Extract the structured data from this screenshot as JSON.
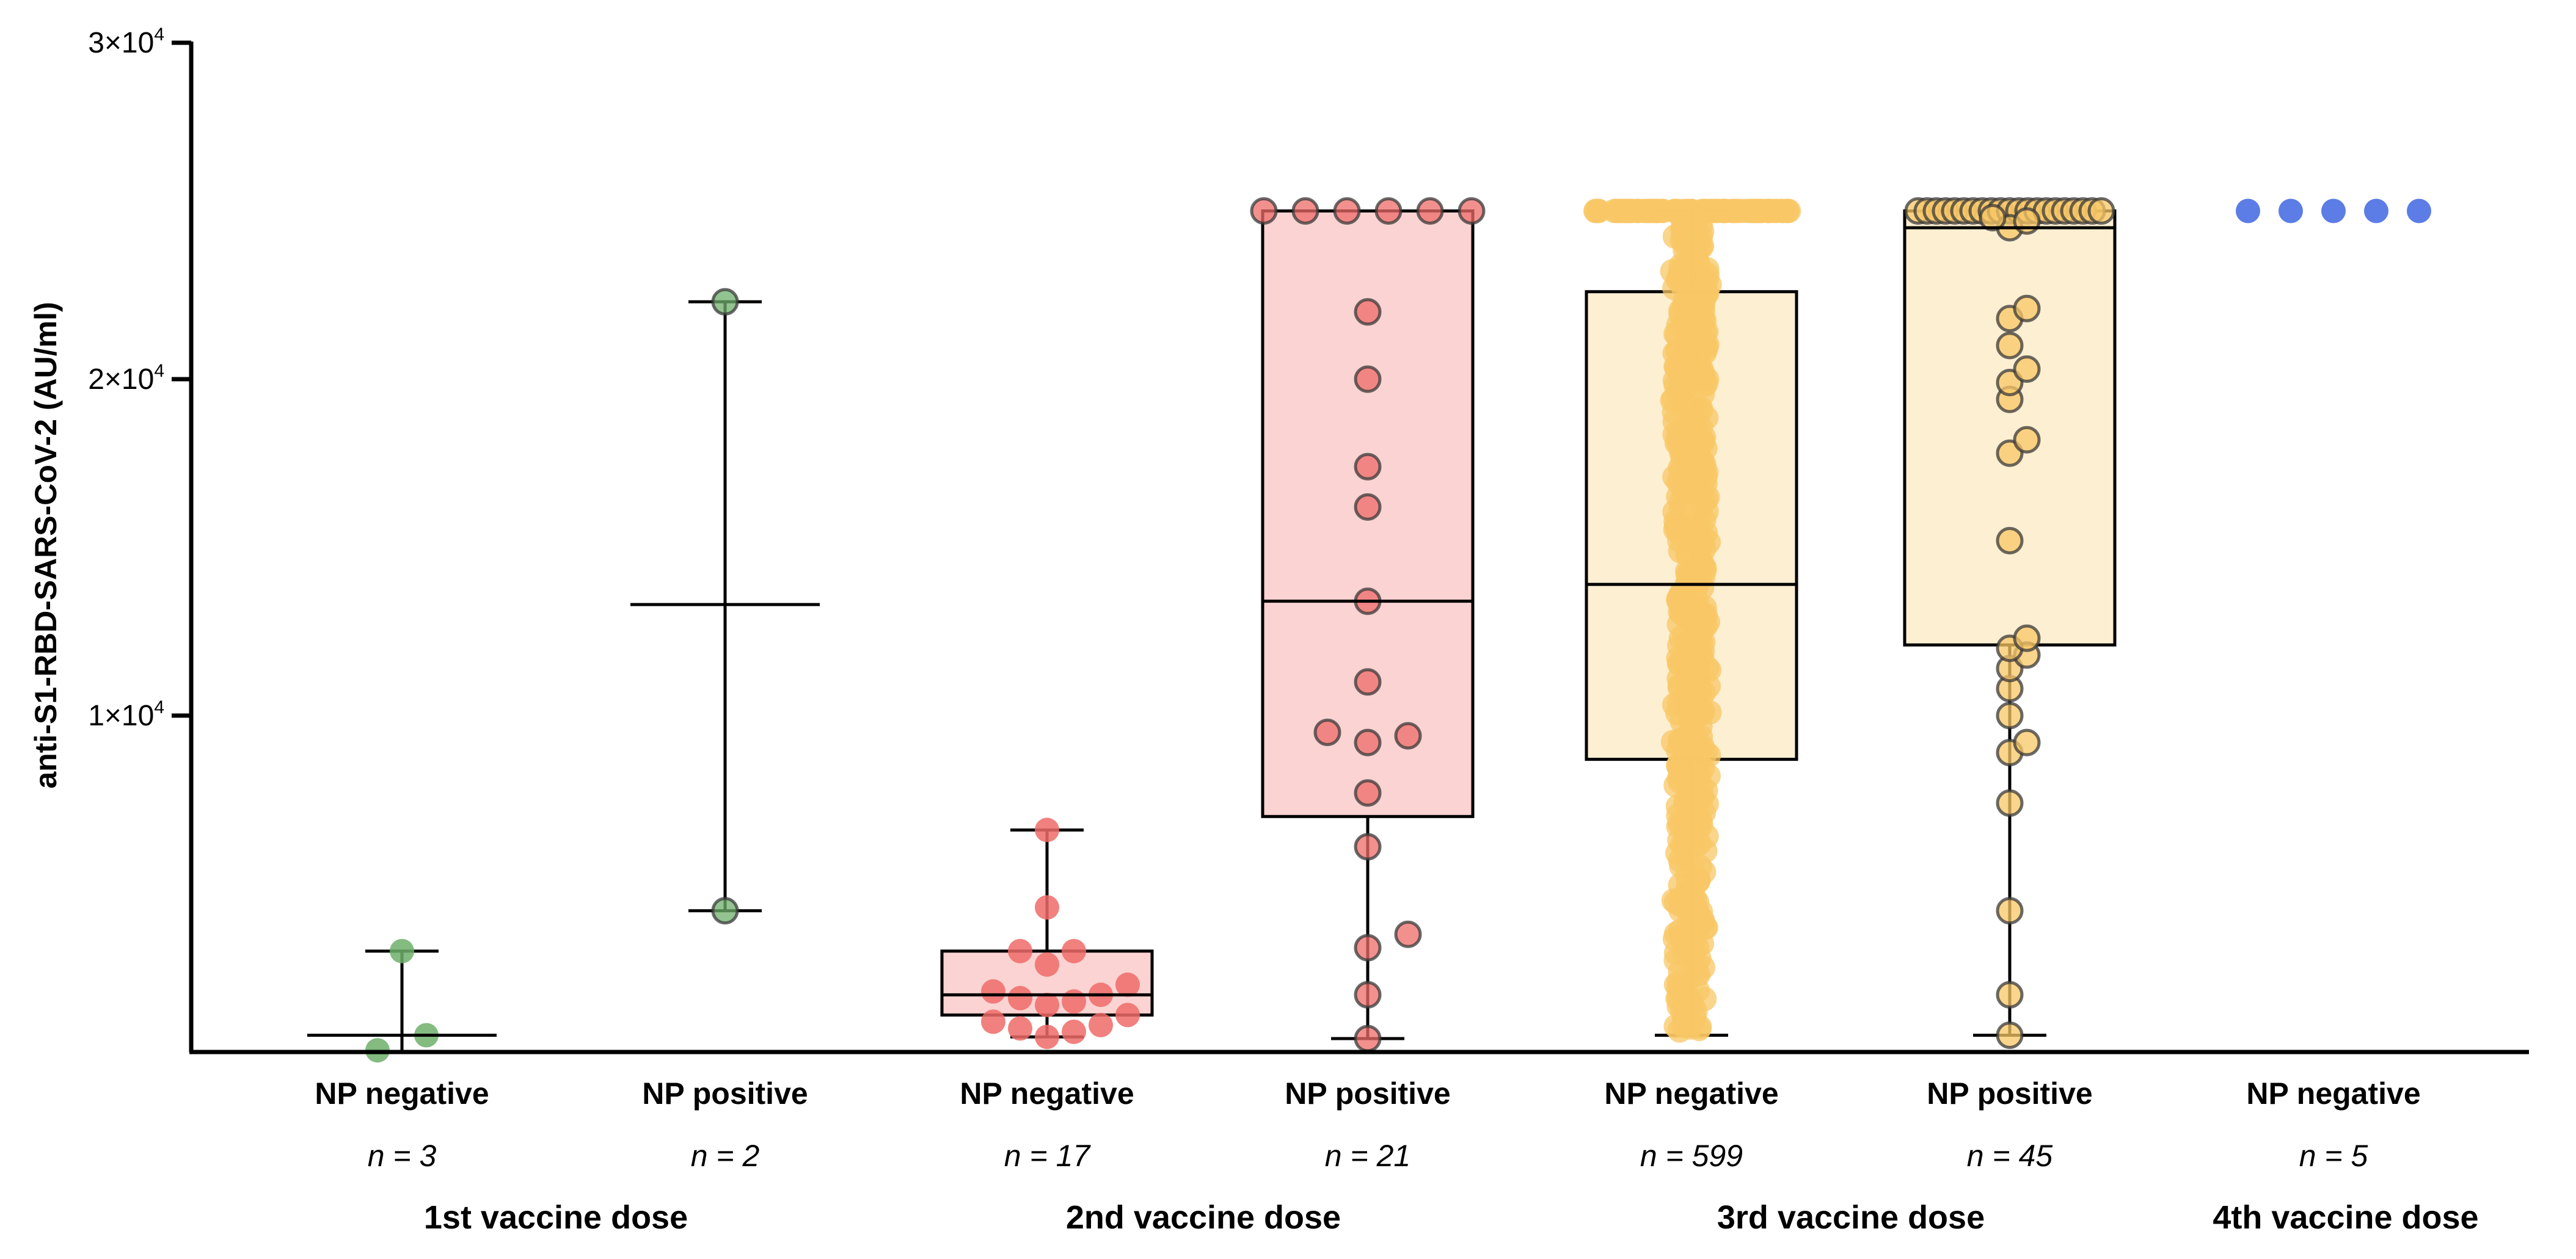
{
  "chart_data": {
    "type": "box-scatter",
    "ylabel": "anti-S1-RBD-SARS-CoV-2 (AU/ml)",
    "ylim": [
      0,
      30000
    ],
    "yticks": [
      {
        "value": 10000,
        "label": "1×10",
        "exp": "4"
      },
      {
        "value": 20000,
        "label": "2×10",
        "exp": "4"
      },
      {
        "value": 30000,
        "label": "3×10",
        "exp": "4"
      }
    ],
    "colors": {
      "green": "#6DAF6B",
      "red": "#EE6B68",
      "redFill": "#FAD3D2",
      "yellow": "#F8C766",
      "yellowFill": "#FDEFD2",
      "blue": "#3F66E0"
    },
    "groups": [
      {
        "label": "NP negative",
        "n": "n = 3",
        "dose": "1st vaccine dose",
        "color": "green",
        "box": false,
        "outlined": false,
        "median": 500,
        "whisker": [
          0,
          3000
        ],
        "points": [
          50,
          500,
          3000
        ]
      },
      {
        "label": "NP positive",
        "n": "n = 2",
        "dose": "1st vaccine dose",
        "color": "green",
        "box": false,
        "outlined": true,
        "median": 13300,
        "whisker": [
          4200,
          22300
        ],
        "points": [
          4200,
          22300
        ]
      },
      {
        "label": "NP negative",
        "n": "n = 17",
        "dose": "2nd vaccine dose",
        "color": "red",
        "box": true,
        "outlined": false,
        "median": 1700,
        "q1": 1100,
        "q3": 3000,
        "whisker": [
          450,
          6600
        ],
        "points": [
          450,
          600,
          700,
          800,
          900,
          1100,
          1400,
          1500,
          1600,
          1700,
          1800,
          2000,
          2600,
          3000,
          3000,
          4300,
          6600
        ]
      },
      {
        "label": "NP positive",
        "n": "n = 21",
        "dose": "2nd vaccine dose",
        "color": "red",
        "box": true,
        "outlined": true,
        "median": 13400,
        "q1": 7000,
        "q3": 25000,
        "whisker": [
          400,
          25000
        ],
        "points": [
          400,
          1700,
          3100,
          3500,
          6100,
          7700,
          9200,
          9400,
          9500,
          11000,
          13400,
          16200,
          17400,
          20000,
          22000,
          25000,
          25000,
          25000,
          25000,
          25000,
          25000
        ]
      },
      {
        "label": "NP negative",
        "n": "n = 599",
        "dose": "3rd vaccine dose",
        "color": "yellow",
        "box": true,
        "outlined": false,
        "dense": true,
        "median": 13900,
        "q1": 8700,
        "q3": 22600,
        "whisker": [
          500,
          25000
        ],
        "points": []
      },
      {
        "label": "NP positive",
        "n": "n = 45",
        "dose": "3rd vaccine dose",
        "color": "yellow",
        "box": true,
        "outlined": true,
        "median": 24500,
        "q1": 12100,
        "q3": 25000,
        "whisker": [
          500,
          25000
        ],
        "points": [
          500,
          1700,
          4200,
          7400,
          8900,
          9200,
          10000,
          10800,
          11400,
          11800,
          12000,
          12300,
          15200,
          17800,
          18200,
          19400,
          19900,
          20300,
          21000,
          21800,
          22100,
          24500,
          24700,
          24800,
          25000,
          25000,
          25000,
          25000,
          25000,
          25000,
          25000,
          25000,
          25000,
          25000,
          25000,
          25000,
          25000,
          25000,
          25000,
          25000,
          25000,
          25000,
          25000,
          25000,
          25000
        ]
      },
      {
        "label": "NP negative",
        "n": "n = 5",
        "dose": "4th vaccine dose",
        "color": "blue",
        "box": false,
        "outlined": false,
        "flat": true,
        "median": 25000,
        "points": [
          25000,
          25000,
          25000,
          25000,
          25000
        ]
      }
    ],
    "doses": [
      {
        "label": "1st vaccine dose",
        "groups": [
          0,
          1
        ]
      },
      {
        "label": "2nd vaccine dose",
        "groups": [
          2,
          3
        ]
      },
      {
        "label": "3rd vaccine dose",
        "groups": [
          4,
          5
        ]
      },
      {
        "label": "4th vaccine dose",
        "groups": [
          6
        ]
      }
    ]
  }
}
